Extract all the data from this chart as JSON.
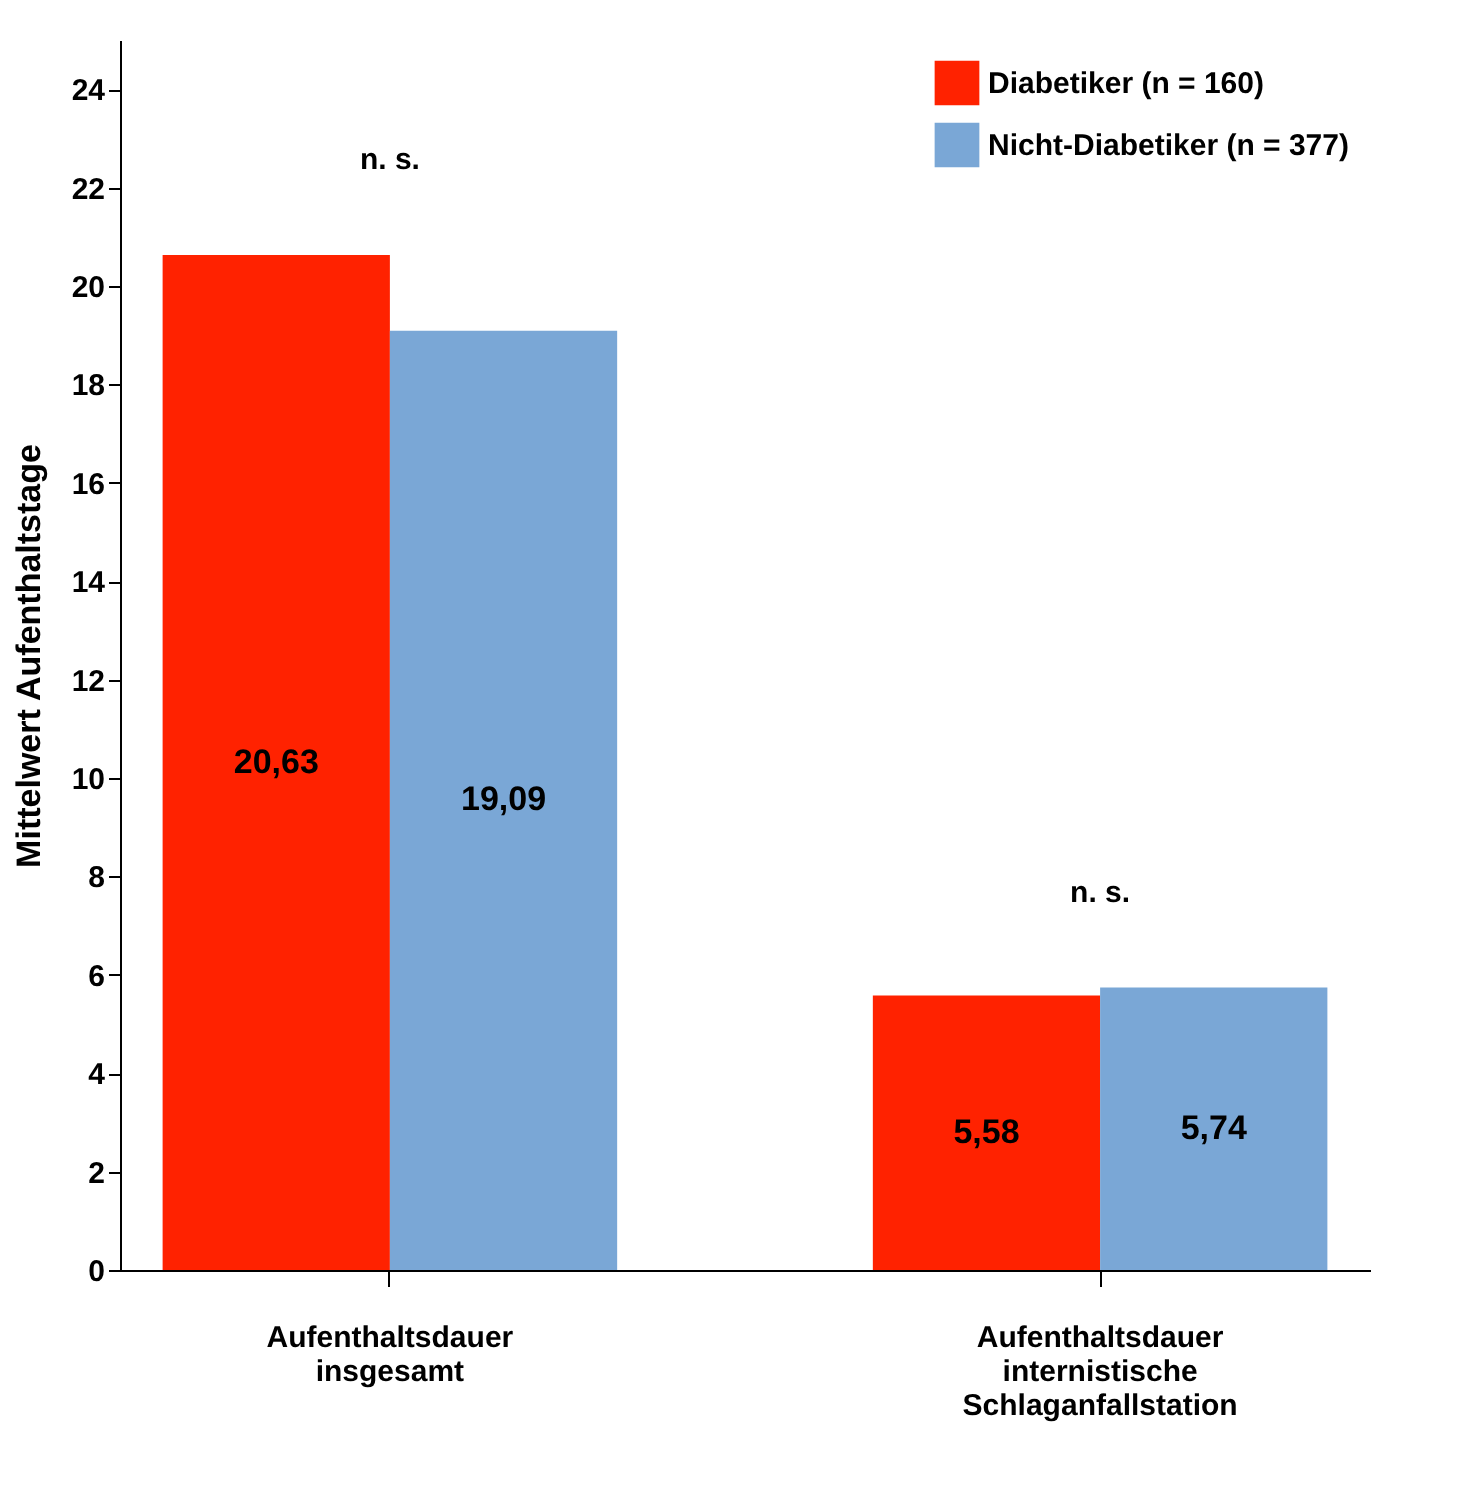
{
  "chart_data": {
    "type": "bar",
    "ylabel": "Mittelwert Aufenthaltstage",
    "categories": [
      "Aufenthaltsdauer insgesamt",
      "Aufenthaltsdauer internistische Schlaganfallstation"
    ],
    "series": [
      {
        "name": "Diabetiker (n = 160)",
        "color": "#ff2200",
        "values": [
          20.63,
          5.58
        ],
        "value_labels": [
          "20,63",
          "5,58"
        ]
      },
      {
        "name": "Nicht-Diabetiker (n = 377)",
        "color": "#7aa7d6",
        "values": [
          19.09,
          5.74
        ],
        "value_labels": [
          "19,09",
          "5,74"
        ]
      }
    ],
    "ylim": [
      0,
      25
    ],
    "yticks": [
      0,
      2,
      4,
      6,
      8,
      10,
      12,
      14,
      16,
      18,
      20,
      22,
      24
    ],
    "grid": false,
    "legend": "top right",
    "annotations": [
      "n. s.",
      "n. s."
    ]
  }
}
